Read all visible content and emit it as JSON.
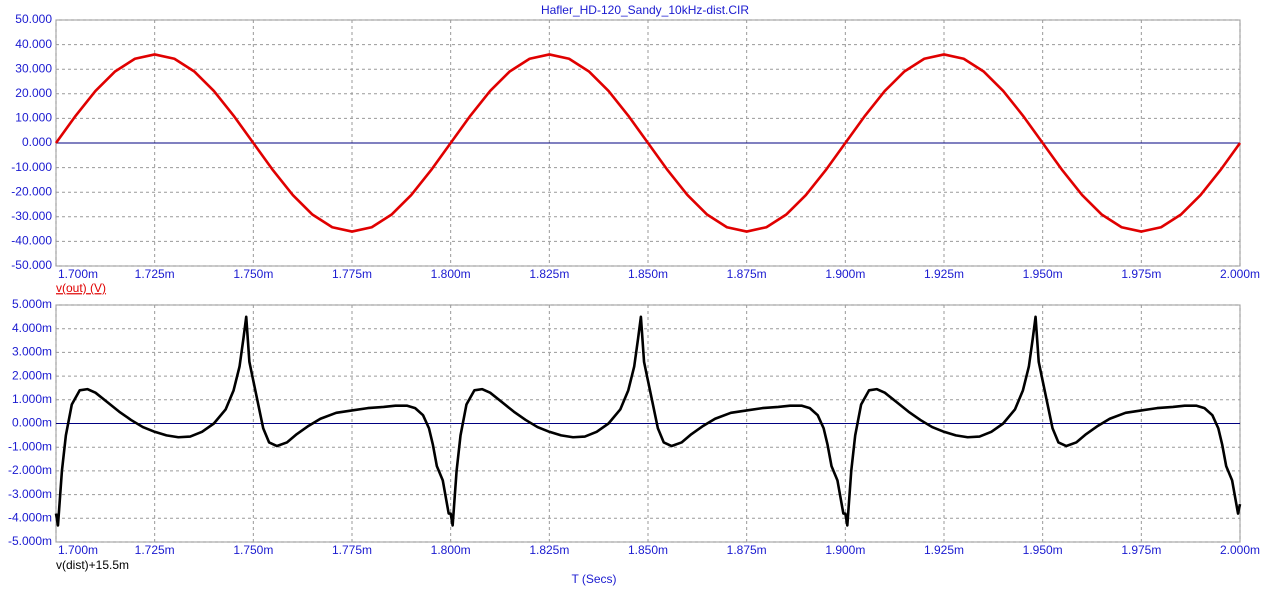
{
  "chart_data": [
    {
      "type": "line",
      "title": "Hafler_HD-120_Sandy_10kHz-dist.CIR",
      "x": [
        0.0017,
        0.001705,
        0.00171,
        0.001715,
        0.00172,
        0.001725,
        0.00173,
        0.001735,
        0.00174,
        0.001745,
        0.00175,
        0.001755,
        0.00176,
        0.001765,
        0.00177,
        0.001775,
        0.00178,
        0.001785,
        0.00179,
        0.001795,
        0.0018,
        0.001805,
        0.00181,
        0.001815,
        0.00182,
        0.001825,
        0.00183,
        0.001835,
        0.00184,
        0.001845,
        0.00185,
        0.001855,
        0.00186,
        0.001865,
        0.00187,
        0.001875,
        0.00188,
        0.001885,
        0.00189,
        0.001895,
        0.0019,
        0.001905,
        0.00191,
        0.001915,
        0.00192,
        0.001925,
        0.00193,
        0.001935,
        0.00194,
        0.001945,
        0.00195,
        0.001955,
        0.00196,
        0.001965,
        0.00197,
        0.001975,
        0.00198,
        0.001985,
        0.00199,
        0.001995,
        0.002
      ],
      "series": [
        {
          "name": "v(out) (V)",
          "color": "#e00000",
          "values": [
            0,
            11.12,
            21.16,
            29.12,
            34.24,
            36,
            34.24,
            29.12,
            21.16,
            11.12,
            0,
            -11.12,
            -21.16,
            -29.12,
            -34.24,
            -36,
            -34.24,
            -29.12,
            -21.16,
            -11.12,
            0,
            11.12,
            21.16,
            29.12,
            34.24,
            36,
            34.24,
            29.12,
            21.16,
            11.12,
            0,
            -11.12,
            -21.16,
            -29.12,
            -34.24,
            -36,
            -34.24,
            -29.12,
            -21.16,
            -11.12,
            0,
            11.12,
            21.16,
            29.12,
            34.24,
            36,
            34.24,
            29.12,
            21.16,
            11.12,
            0,
            -11.12,
            -21.16,
            -29.12,
            -34.24,
            -36,
            -34.24,
            -29.12,
            -21.16,
            -11.12,
            0
          ]
        }
      ],
      "xlim": [
        0.0017,
        0.002
      ],
      "ylim": [
        -50,
        50
      ],
      "xticks": [
        {
          "value": 0.0017,
          "label": "1.700m"
        },
        {
          "value": 0.001725,
          "label": "1.725m"
        },
        {
          "value": 0.00175,
          "label": "1.750m"
        },
        {
          "value": 0.001775,
          "label": "1.775m"
        },
        {
          "value": 0.0018,
          "label": "1.800m"
        },
        {
          "value": 0.001825,
          "label": "1.825m"
        },
        {
          "value": 0.00185,
          "label": "1.850m"
        },
        {
          "value": 0.001875,
          "label": "1.875m"
        },
        {
          "value": 0.0019,
          "label": "1.900m"
        },
        {
          "value": 0.001925,
          "label": "1.925m"
        },
        {
          "value": 0.00195,
          "label": "1.950m"
        },
        {
          "value": 0.001975,
          "label": "1.975m"
        },
        {
          "value": 0.002,
          "label": "2.000m"
        }
      ],
      "yticks": [
        {
          "value": 50,
          "label": "50.000"
        },
        {
          "value": 40,
          "label": "40.000"
        },
        {
          "value": 30,
          "label": "30.000"
        },
        {
          "value": 20,
          "label": "20.000"
        },
        {
          "value": 10,
          "label": "10.000"
        },
        {
          "value": 0,
          "label": "0.000"
        },
        {
          "value": -10,
          "label": "-10.000"
        },
        {
          "value": -20,
          "label": "-20.000"
        },
        {
          "value": -30,
          "label": "-30.000"
        },
        {
          "value": -40,
          "label": "-40.000"
        },
        {
          "value": -50,
          "label": "-50.000"
        }
      ],
      "grid": true
    },
    {
      "type": "line",
      "xlabel": "T (Secs)",
      "x": [
        0.0017,
        0.0017005,
        0.0017015,
        0.0017025,
        0.001704,
        0.001706,
        0.001708,
        0.00171,
        0.001713,
        0.001716,
        0.001719,
        0.001722,
        0.001725,
        0.001728,
        0.001731,
        0.001734,
        0.001737,
        0.00174,
        0.001743,
        0.001745,
        0.0017465,
        0.0017475,
        0.0017482,
        0.001749,
        0.00175,
        0.001751,
        0.0017525,
        0.001754,
        0.001756,
        0.0017585,
        0.001761,
        0.001764,
        0.001767,
        0.001771,
        0.001775,
        0.001779,
        0.001783,
        0.001786,
        0.001789,
        0.001791,
        0.001793,
        0.0017945,
        0.0017955,
        0.0017965,
        0.001798,
        0.0017995,
        0.0018,
        0.0018005,
        0.0018015,
        0.0018025,
        0.001804,
        0.001806,
        0.001808,
        0.00181,
        0.001813,
        0.001816,
        0.001819,
        0.001822,
        0.001825,
        0.001828,
        0.001831,
        0.001834,
        0.001837,
        0.00184,
        0.001843,
        0.001845,
        0.0018465,
        0.0018475,
        0.0018482,
        0.001849,
        0.00185,
        0.001851,
        0.0018525,
        0.001854,
        0.001856,
        0.0018585,
        0.001861,
        0.001864,
        0.001867,
        0.001871,
        0.001875,
        0.001879,
        0.001883,
        0.001886,
        0.001889,
        0.001891,
        0.001893,
        0.0018945,
        0.0018955,
        0.0018965,
        0.001898,
        0.0018995,
        0.0019,
        0.0019005,
        0.0019015,
        0.0019025,
        0.001904,
        0.001906,
        0.001908,
        0.00191,
        0.001913,
        0.001916,
        0.001919,
        0.001922,
        0.001925,
        0.001928,
        0.001931,
        0.001934,
        0.001937,
        0.00194,
        0.001943,
        0.001945,
        0.0019465,
        0.0019475,
        0.0019482,
        0.001949,
        0.00195,
        0.001951,
        0.0019525,
        0.001954,
        0.001956,
        0.0019585,
        0.001961,
        0.001964,
        0.001967,
        0.001971,
        0.001975,
        0.001979,
        0.001983,
        0.001986,
        0.001989,
        0.001991,
        0.001993,
        0.0019945,
        0.0019955,
        0.0019965,
        0.001998,
        0.0019995,
        0.002
      ],
      "series": [
        {
          "name": "v(dist)+15.5m",
          "color": "#000000",
          "values": [
            -0.0038,
            -0.0043,
            -0.002,
            -0.0005,
            0.0008,
            0.0014,
            0.00145,
            0.0013,
            0.0009,
            0.0005,
            0.00015,
            -0.00015,
            -0.00035,
            -0.0005,
            -0.00058,
            -0.00055,
            -0.00035,
            0,
            0.0006,
            0.0014,
            0.0024,
            0.0036,
            0.0045,
            0.0026,
            0.0018,
            0.001,
            -0.0002,
            -0.0008,
            -0.00095,
            -0.0008,
            -0.00045,
            -0.0001,
            0.0002,
            0.00045,
            0.00055,
            0.00065,
            0.0007,
            0.00075,
            0.00075,
            0.00065,
            0.00035,
            -0.0002,
            -0.0009,
            -0.0018,
            -0.0024,
            -0.0038,
            -0.0038,
            -0.0043,
            -0.002,
            -0.0005,
            0.0008,
            0.0014,
            0.00145,
            0.0013,
            0.0009,
            0.0005,
            0.00015,
            -0.00015,
            -0.00035,
            -0.0005,
            -0.00058,
            -0.00055,
            -0.00035,
            0,
            0.0006,
            0.0014,
            0.0024,
            0.0036,
            0.0045,
            0.0026,
            0.0018,
            0.001,
            -0.0002,
            -0.0008,
            -0.00095,
            -0.0008,
            -0.00045,
            -0.0001,
            0.0002,
            0.00045,
            0.00055,
            0.00065,
            0.0007,
            0.00075,
            0.00075,
            0.00065,
            0.00035,
            -0.0002,
            -0.0009,
            -0.0018,
            -0.0024,
            -0.0038,
            -0.0038,
            -0.0043,
            -0.002,
            -0.0005,
            0.0008,
            0.0014,
            0.00145,
            0.0013,
            0.0009,
            0.0005,
            0.00015,
            -0.00015,
            -0.00035,
            -0.0005,
            -0.00058,
            -0.00055,
            -0.00035,
            0,
            0.0006,
            0.0014,
            0.0024,
            0.0036,
            0.0045,
            0.0026,
            0.0018,
            0.001,
            -0.0002,
            -0.0008,
            -0.00095,
            -0.0008,
            -0.00045,
            -0.0001,
            0.0002,
            0.00045,
            0.00055,
            0.00065,
            0.0007,
            0.00075,
            0.00075,
            0.00065,
            0.00035,
            -0.0002,
            -0.0009,
            -0.0018,
            -0.0024,
            -0.0038,
            -0.0034
          ]
        }
      ],
      "xlim": [
        0.0017,
        0.002
      ],
      "ylim": [
        -0.005,
        0.005
      ],
      "xticks": [
        {
          "value": 0.0017,
          "label": "1.700m"
        },
        {
          "value": 0.001725,
          "label": "1.725m"
        },
        {
          "value": 0.00175,
          "label": "1.750m"
        },
        {
          "value": 0.001775,
          "label": "1.775m"
        },
        {
          "value": 0.0018,
          "label": "1.800m"
        },
        {
          "value": 0.001825,
          "label": "1.825m"
        },
        {
          "value": 0.00185,
          "label": "1.850m"
        },
        {
          "value": 0.001875,
          "label": "1.875m"
        },
        {
          "value": 0.0019,
          "label": "1.900m"
        },
        {
          "value": 0.001925,
          "label": "1.925m"
        },
        {
          "value": 0.00195,
          "label": "1.950m"
        },
        {
          "value": 0.001975,
          "label": "1.975m"
        },
        {
          "value": 0.002,
          "label": "2.000m"
        }
      ],
      "yticks": [
        {
          "value": 0.005,
          "label": "5.000m"
        },
        {
          "value": 0.004,
          "label": "4.000m"
        },
        {
          "value": 0.003,
          "label": "3.000m"
        },
        {
          "value": 0.002,
          "label": "2.000m"
        },
        {
          "value": 0.001,
          "label": "1.000m"
        },
        {
          "value": 0,
          "label": "0.000m"
        },
        {
          "value": -0.001,
          "label": "-1.000m"
        },
        {
          "value": -0.002,
          "label": "-2.000m"
        },
        {
          "value": -0.003,
          "label": "-3.000m"
        },
        {
          "value": -0.004,
          "label": "-4.000m"
        },
        {
          "value": -0.005,
          "label": "-5.000m"
        }
      ],
      "grid": true
    }
  ]
}
